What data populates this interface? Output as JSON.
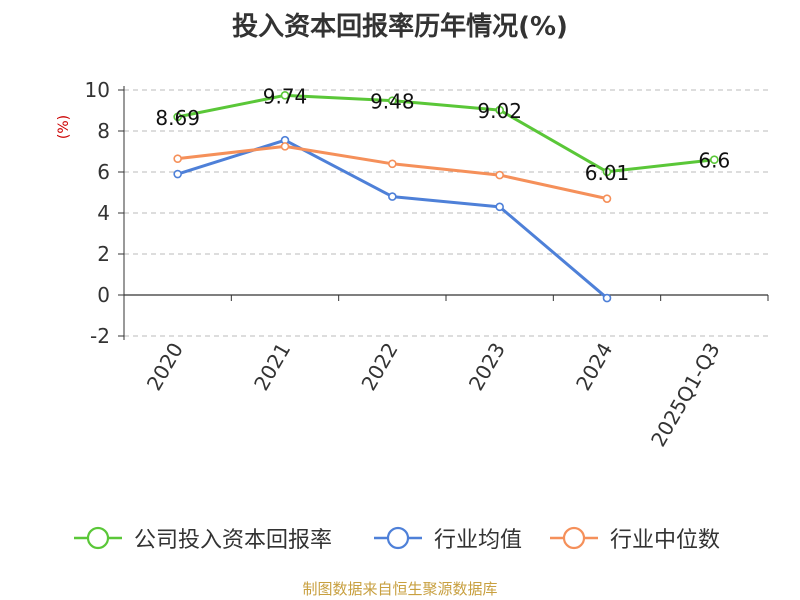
{
  "chart_data": {
    "type": "line",
    "title": "投入资本回报率历年情况(%)",
    "ylabel": "(%)",
    "xlabel": "",
    "categories": [
      "2020",
      "2021",
      "2022",
      "2023",
      "2024",
      "2025Q1-Q3"
    ],
    "ylim": [
      -2,
      10
    ],
    "yticks": [
      -2,
      0,
      2,
      4,
      6,
      8,
      10
    ],
    "grid": true,
    "legend_position": "bottom",
    "series": [
      {
        "name": "公司投入资本回报率",
        "color": "#5ac738",
        "values": [
          8.69,
          9.74,
          9.48,
          9.02,
          6.01,
          6.6
        ],
        "labels": [
          "8.69",
          "9.74",
          "9.48",
          "9.02",
          "6.01",
          "6.6"
        ]
      },
      {
        "name": "行业均值",
        "color": "#4e80d8",
        "values": [
          5.9,
          7.55,
          4.8,
          4.3,
          -0.15,
          null
        ]
      },
      {
        "name": "行业中位数",
        "color": "#f5905a",
        "values": [
          6.65,
          7.25,
          6.4,
          5.85,
          4.7,
          null
        ]
      }
    ]
  },
  "source_text": "制图数据来自恒生聚源数据库"
}
